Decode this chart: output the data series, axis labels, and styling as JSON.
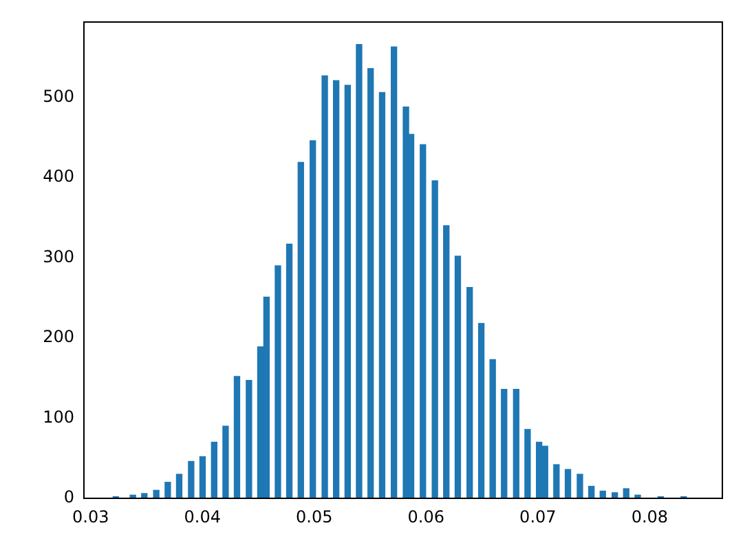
{
  "chart_data": {
    "type": "bar",
    "x": [
      0.03225,
      0.03378,
      0.0348,
      0.03587,
      0.0369,
      0.03792,
      0.03899,
      0.04001,
      0.04105,
      0.04207,
      0.04309,
      0.04416,
      0.04518,
      0.04573,
      0.04675,
      0.04777,
      0.0488,
      0.04987,
      0.05094,
      0.05196,
      0.05299,
      0.05401,
      0.05504,
      0.05607,
      0.05713,
      0.0582,
      0.05866,
      0.05972,
      0.06079,
      0.06181,
      0.06284,
      0.0639,
      0.06494,
      0.06596,
      0.06698,
      0.06806,
      0.06908,
      0.07011,
      0.07064,
      0.07166,
      0.07269,
      0.07376,
      0.07479,
      0.07581,
      0.07688,
      0.0779,
      0.07893,
      0.08099,
      0.08304
    ],
    "values": [
      2,
      4,
      6,
      10,
      20,
      30,
      46,
      52,
      70,
      90,
      152,
      147,
      189,
      251,
      290,
      317,
      419,
      446,
      527,
      521,
      515,
      566,
      536,
      506,
      563,
      488,
      454,
      441,
      396,
      340,
      302,
      263,
      218,
      173,
      136,
      136,
      86,
      70,
      65,
      42,
      36,
      30,
      15,
      9,
      7,
      12,
      4,
      2,
      2
    ],
    "color": "#1f77b4",
    "xlim": [
      0.0294,
      0.0865
    ],
    "xticks": [
      0.03,
      0.04,
      0.05,
      0.06,
      0.07,
      0.08
    ],
    "ylim": [
      0,
      594
    ],
    "yticks": [
      0,
      100,
      200,
      300,
      400,
      500
    ],
    "grid": false,
    "legend": false
  }
}
